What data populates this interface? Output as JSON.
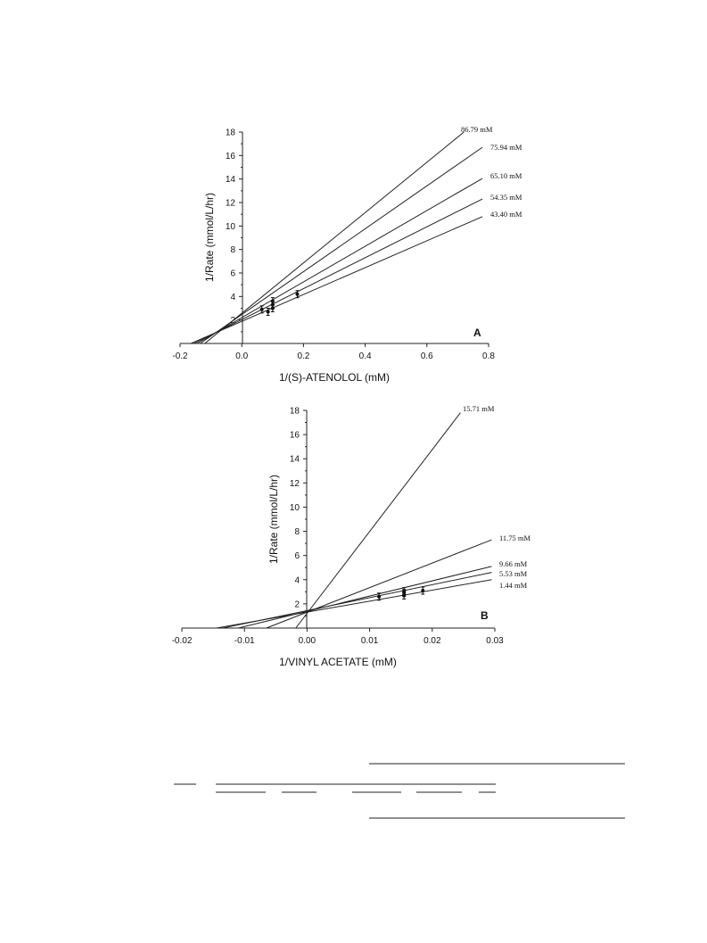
{
  "chart_data": [
    {
      "type": "line",
      "panel_label": "A",
      "xlabel": "1/(S)-ATENOLOL (mM)",
      "ylabel": "1/Rate (mmol/L/hr)",
      "xlim": [
        -0.2,
        0.8
      ],
      "ylim": [
        0,
        18
      ],
      "x_ticks": [
        "-0.2",
        "0.0",
        "0.2",
        "0.4",
        "0.6",
        "0.8"
      ],
      "y_ticks": [
        "2",
        "4",
        "6",
        "8",
        "10",
        "12",
        "14",
        "16",
        "18"
      ],
      "series": [
        {
          "name": "86.79 mM",
          "x": [
            -0.12,
            0.72
          ],
          "y": [
            0.0,
            18.0
          ]
        },
        {
          "name": "75.94 mM",
          "x": [
            -0.135,
            0.78
          ],
          "y": [
            0.0,
            16.7
          ]
        },
        {
          "name": "65.10 mM",
          "x": [
            -0.145,
            0.78
          ],
          "y": [
            0.0,
            14.05
          ]
        },
        {
          "name": "54.35 mM",
          "x": [
            -0.155,
            0.78
          ],
          "y": [
            0.0,
            12.3
          ]
        },
        {
          "name": "43.40 mM",
          "x": [
            -0.165,
            0.78
          ],
          "y": [
            0.0,
            10.8
          ]
        }
      ],
      "points": [
        {
          "x": 0.065,
          "y": 2.9
        },
        {
          "x": 0.085,
          "y": 2.7
        },
        {
          "x": 0.1,
          "y": 3.0
        },
        {
          "x": 0.1,
          "y": 3.3
        },
        {
          "x": 0.1,
          "y": 3.6
        },
        {
          "x": 0.18,
          "y": 4.2
        }
      ]
    },
    {
      "type": "line",
      "panel_label": "B",
      "xlabel": "1/VINYL ACETATE (mM)",
      "ylabel": "1/Rate (mmol/L/hr)",
      "xlim": [
        -0.02,
        0.03
      ],
      "ylim": [
        0,
        18
      ],
      "x_ticks": [
        "-0.02",
        "-0.01",
        "0.00",
        "0.01",
        "0.02",
        "0.03"
      ],
      "y_ticks": [
        "2",
        "4",
        "6",
        "8",
        "10",
        "12",
        "14",
        "16",
        "18"
      ],
      "series": [
        {
          "name": "15.71 mM",
          "x": [
            -0.0018,
            0.0245
          ],
          "y": [
            0.0,
            17.8
          ]
        },
        {
          "name": "11.75 mM",
          "x": [
            -0.0065,
            0.0295
          ],
          "y": [
            0.0,
            7.3
          ]
        },
        {
          "name": "9.66 mM",
          "x": [
            -0.011,
            0.0295
          ],
          "y": [
            0.0,
            5.1
          ]
        },
        {
          "name": "5.53 mM",
          "x": [
            -0.0135,
            0.0295
          ],
          "y": [
            0.0,
            4.6
          ]
        },
        {
          "name": "1.44 mM",
          "x": [
            -0.0145,
            0.0295
          ],
          "y": [
            0.0,
            4.0
          ]
        }
      ],
      "points": [
        {
          "x": 0.0115,
          "y": 2.6
        },
        {
          "x": 0.0155,
          "y": 2.7
        },
        {
          "x": 0.0155,
          "y": 2.9
        },
        {
          "x": 0.0155,
          "y": 3.05
        },
        {
          "x": 0.0185,
          "y": 3.1
        }
      ]
    }
  ]
}
